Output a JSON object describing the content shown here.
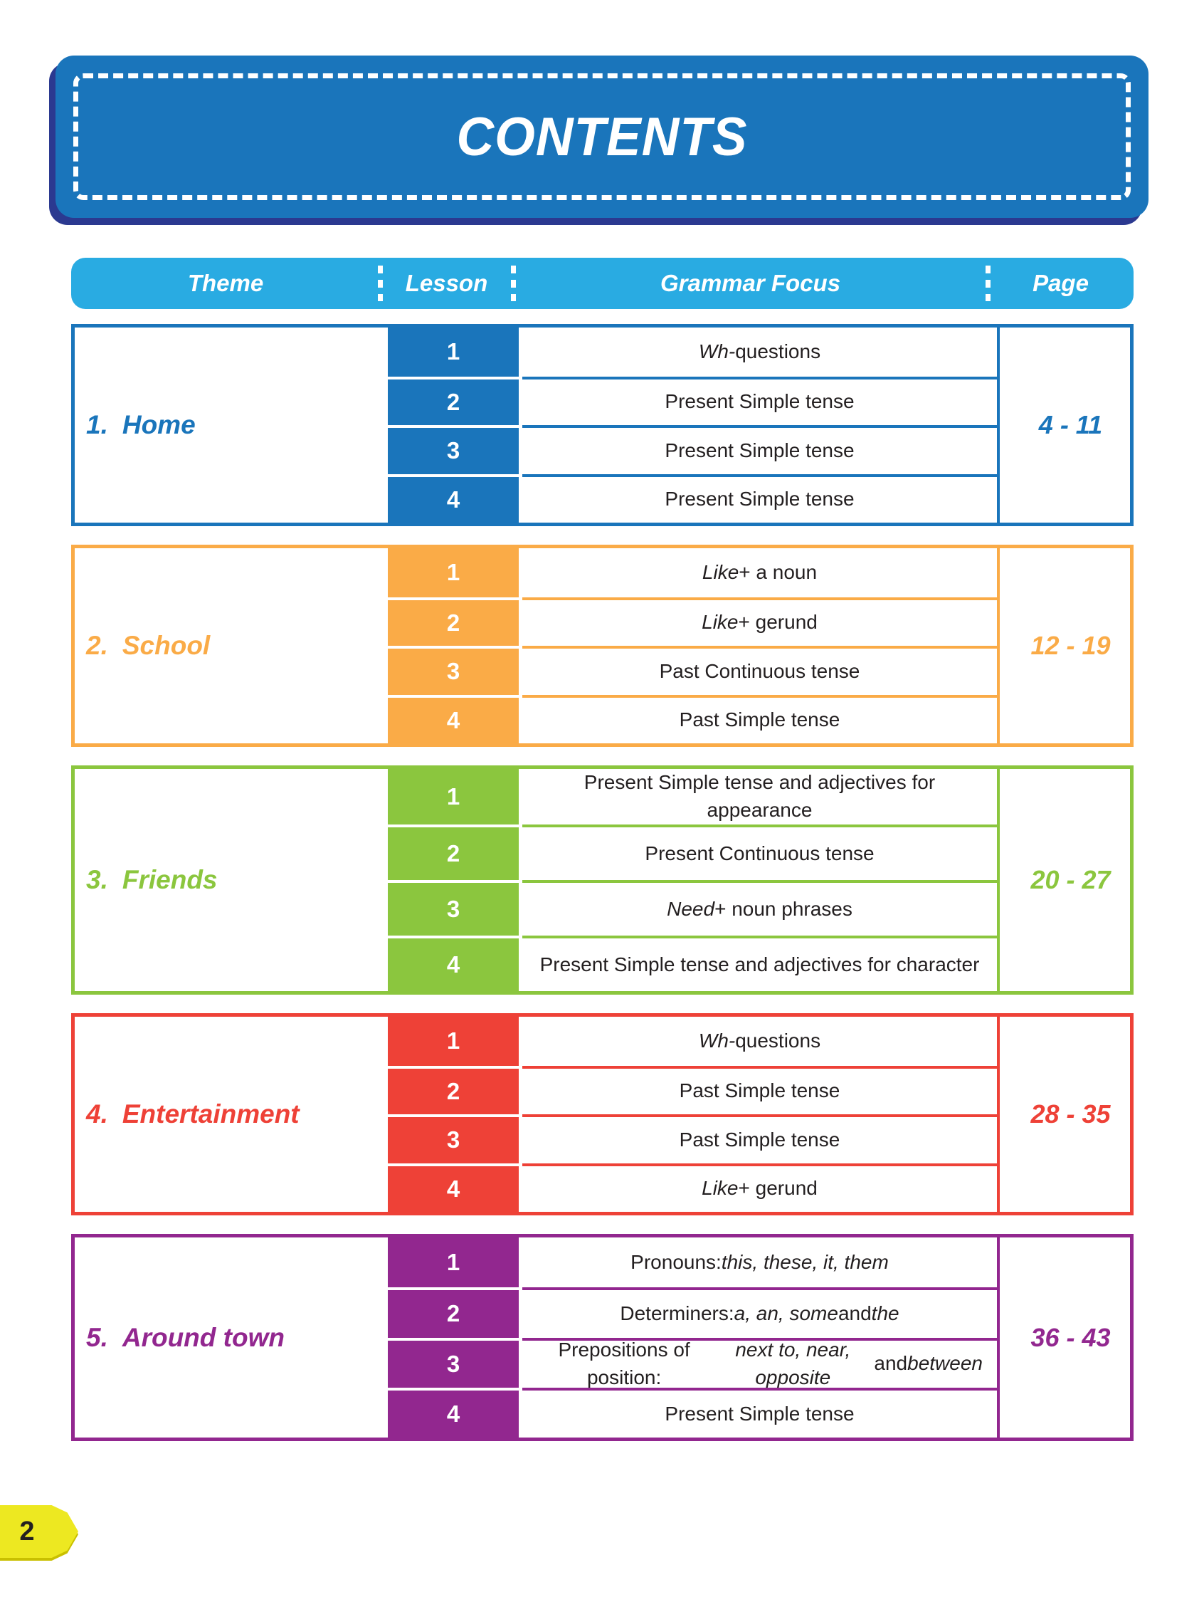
{
  "title": "CONTENTS",
  "page_number": "2",
  "header": {
    "columns": [
      "Theme",
      "Lesson",
      "Grammar Focus",
      "Page"
    ]
  },
  "colors": {
    "title_box": "#1A75BB",
    "title_shadow": "#2B3990",
    "header_bar": "#29ABE2",
    "grammar_text": "#231F20",
    "page_tab": "#EDE821"
  },
  "sections": [
    {
      "index": "1.",
      "theme": "Home",
      "color": "#1A75BB",
      "page_range": "4 - 11",
      "lessons": [
        {
          "number": "1",
          "grammar": [
            {
              "t": "Wh-",
              "i": true
            },
            {
              "t": " questions"
            }
          ]
        },
        {
          "number": "2",
          "grammar": [
            {
              "t": "Present Simple tense"
            }
          ]
        },
        {
          "number": "3",
          "grammar": [
            {
              "t": "Present Simple tense"
            }
          ]
        },
        {
          "number": "4",
          "grammar": [
            {
              "t": "Present Simple tense"
            }
          ]
        }
      ]
    },
    {
      "index": "2.",
      "theme": "School",
      "color": "#FAAB47",
      "page_range": "12 - 19",
      "lessons": [
        {
          "number": "1",
          "grammar": [
            {
              "t": "Like",
              "i": true
            },
            {
              "t": " + a noun"
            }
          ]
        },
        {
          "number": "2",
          "grammar": [
            {
              "t": "Like",
              "i": true
            },
            {
              "t": " + gerund"
            }
          ]
        },
        {
          "number": "3",
          "grammar": [
            {
              "t": "Past Continuous tense"
            }
          ]
        },
        {
          "number": "4",
          "grammar": [
            {
              "t": "Past Simple tense"
            }
          ]
        }
      ]
    },
    {
      "index": "3.",
      "theme": "Friends",
      "color": "#8BC63E",
      "page_range": "20 - 27",
      "lessons": [
        {
          "number": "1",
          "grammar": [
            {
              "t": "Present Simple tense and adjectives for appearance"
            }
          ]
        },
        {
          "number": "2",
          "grammar": [
            {
              "t": "Present Continuous tense"
            }
          ]
        },
        {
          "number": "3",
          "grammar": [
            {
              "t": "Need",
              "i": true
            },
            {
              "t": " + noun phrases"
            }
          ]
        },
        {
          "number": "4",
          "grammar": [
            {
              "t": "Present Simple tense and adjectives for character"
            }
          ]
        }
      ]
    },
    {
      "index": "4.",
      "theme": "Entertainment",
      "color": "#EE4137",
      "page_range": "28 - 35",
      "lessons": [
        {
          "number": "1",
          "grammar": [
            {
              "t": "Wh-",
              "i": true
            },
            {
              "t": " questions"
            }
          ]
        },
        {
          "number": "2",
          "grammar": [
            {
              "t": "Past Simple tense"
            }
          ]
        },
        {
          "number": "3",
          "grammar": [
            {
              "t": "Past Simple tense"
            }
          ]
        },
        {
          "number": "4",
          "grammar": [
            {
              "t": "Like",
              "i": true
            },
            {
              "t": " + gerund"
            }
          ]
        }
      ]
    },
    {
      "index": "5.",
      "theme": "Around town",
      "color": "#92278F",
      "page_range": "36 - 43",
      "lessons": [
        {
          "number": "1",
          "grammar": [
            {
              "t": "Pronouns: "
            },
            {
              "t": "this, these, it, them",
              "i": true
            }
          ]
        },
        {
          "number": "2",
          "grammar": [
            {
              "t": "Determiners: "
            },
            {
              "t": "a, an, some",
              "i": true
            },
            {
              "t": " and "
            },
            {
              "t": "the",
              "i": true
            }
          ]
        },
        {
          "number": "3",
          "grammar": [
            {
              "t": "Prepositions of position: "
            },
            {
              "t": "next to, near, opposite",
              "i": true
            },
            {
              "t": " and "
            },
            {
              "t": "between",
              "i": true
            }
          ]
        },
        {
          "number": "4",
          "grammar": [
            {
              "t": "Present Simple tense"
            }
          ]
        }
      ]
    }
  ]
}
